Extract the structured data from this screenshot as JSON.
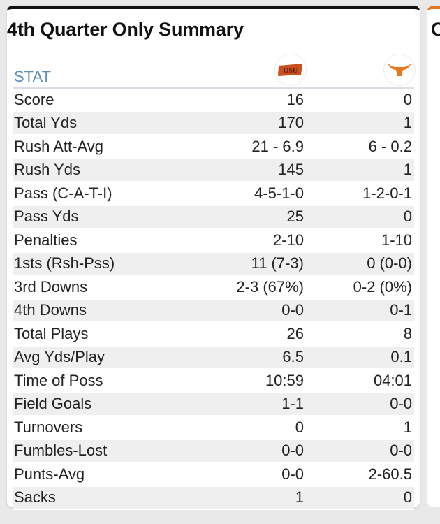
{
  "card": {
    "title": "4th Quarter Only Summary",
    "stat_header": "STAT",
    "teams": [
      {
        "name": "OSU",
        "logo": "osu-logo",
        "color": "#c8501e"
      },
      {
        "name": "Texas",
        "logo": "longhorn-logo",
        "color": "#e87722"
      }
    ]
  },
  "rows": [
    {
      "stat": "Score",
      "team1": "16",
      "team2": "0"
    },
    {
      "stat": "Total Yds",
      "team1": "170",
      "team2": "1"
    },
    {
      "stat": "Rush Att-Avg",
      "team1": "21 - 6.9",
      "team2": "6 - 0.2"
    },
    {
      "stat": "Rush Yds",
      "team1": "145",
      "team2": "1"
    },
    {
      "stat": "Pass (C-A-T-I)",
      "team1": "4-5-1-0",
      "team2": "1-2-0-1"
    },
    {
      "stat": "Pass Yds",
      "team1": "25",
      "team2": "0"
    },
    {
      "stat": "Penalties",
      "team1": "2-10",
      "team2": "1-10"
    },
    {
      "stat": "1sts (Rsh-Pss)",
      "team1": "11 (7-3)",
      "team2": "0 (0-0)"
    },
    {
      "stat": "3rd Downs",
      "team1": "2-3 (67%)",
      "team2": "0-2 (0%)"
    },
    {
      "stat": "4th Downs",
      "team1": "0-0",
      "team2": "0-1"
    },
    {
      "stat": "Total Plays",
      "team1": "26",
      "team2": "8"
    },
    {
      "stat": "Avg Yds/Play",
      "team1": "6.5",
      "team2": "0.1"
    },
    {
      "stat": "Time of Poss",
      "team1": "10:59",
      "team2": "04:01"
    },
    {
      "stat": "Field Goals",
      "team1": "1-1",
      "team2": "0-0"
    },
    {
      "stat": "Turnovers",
      "team1": "0",
      "team2": "1"
    },
    {
      "stat": "Fumbles-Lost",
      "team1": "0-0",
      "team2": "0-0"
    },
    {
      "stat": "Punts-Avg",
      "team1": "0-0",
      "team2": "2-60.5"
    },
    {
      "stat": "Sacks",
      "team1": "1",
      "team2": "0"
    }
  ],
  "side_card": {
    "title_partial": "C"
  }
}
